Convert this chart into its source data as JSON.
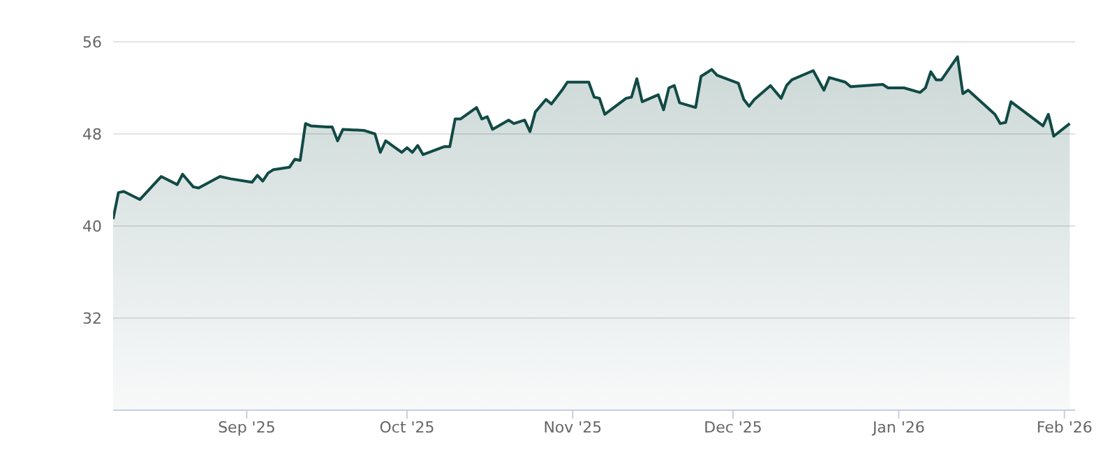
{
  "chart_data": {
    "type": "area",
    "x": [
      "2025-08-07",
      "2025-08-08",
      "2025-08-09",
      "2025-08-12",
      "2025-08-16",
      "2025-08-19",
      "2025-08-20",
      "2025-08-22",
      "2025-08-23",
      "2025-08-27",
      "2025-08-29",
      "2025-09-02",
      "2025-09-03",
      "2025-09-04",
      "2025-09-05",
      "2025-09-06",
      "2025-09-09",
      "2025-09-10",
      "2025-09-11",
      "2025-09-12",
      "2025-09-13",
      "2025-09-16",
      "2025-09-17",
      "2025-09-18",
      "2025-09-19",
      "2025-09-23",
      "2025-09-25",
      "2025-09-26",
      "2025-09-27",
      "2025-09-30",
      "2025-10-01",
      "2025-10-02",
      "2025-10-03",
      "2025-10-04",
      "2025-10-08",
      "2025-10-09",
      "2025-10-10",
      "2025-10-11",
      "2025-10-14",
      "2025-10-15",
      "2025-10-16",
      "2025-10-17",
      "2025-10-20",
      "2025-10-21",
      "2025-10-23",
      "2025-10-24",
      "2025-10-25",
      "2025-10-27",
      "2025-10-28",
      "2025-10-30",
      "2025-10-31",
      "2025-11-04",
      "2025-11-05",
      "2025-11-06",
      "2025-11-07",
      "2025-11-11",
      "2025-11-12",
      "2025-11-13",
      "2025-11-14",
      "2025-11-17",
      "2025-11-18",
      "2025-11-19",
      "2025-11-20",
      "2025-11-21",
      "2025-11-24",
      "2025-11-25",
      "2025-11-27",
      "2025-11-28",
      "2025-12-02",
      "2025-12-03",
      "2025-12-04",
      "2025-12-05",
      "2025-12-08",
      "2025-12-10",
      "2025-12-11",
      "2025-12-12",
      "2025-12-16",
      "2025-12-18",
      "2025-12-19",
      "2025-12-22",
      "2025-12-23",
      "2025-12-29",
      "2025-12-30",
      "2026-01-02",
      "2026-01-05",
      "2026-01-06",
      "2026-01-07",
      "2026-01-08",
      "2026-01-09",
      "2026-01-12",
      "2026-01-13",
      "2026-01-14",
      "2026-01-19",
      "2026-01-20",
      "2026-01-21",
      "2026-01-22",
      "2026-01-28",
      "2026-01-29",
      "2026-01-30",
      "2026-02-02"
    ],
    "series": [
      {
        "color": "#114a45",
        "values": [
          40.6,
          42.9,
          43.0,
          42.3,
          44.3,
          43.6,
          44.5,
          43.4,
          43.3,
          44.3,
          44.1,
          43.8,
          44.4,
          43.9,
          44.6,
          44.9,
          45.1,
          45.8,
          45.7,
          48.9,
          48.7,
          48.6,
          48.6,
          47.4,
          48.4,
          48.3,
          48.0,
          46.4,
          47.4,
          46.4,
          46.8,
          46.4,
          47.0,
          46.2,
          46.9,
          46.9,
          49.3,
          49.3,
          50.3,
          49.3,
          49.5,
          48.4,
          49.2,
          48.9,
          49.2,
          48.2,
          49.9,
          51.0,
          50.6,
          51.8,
          52.5,
          52.5,
          51.2,
          51.1,
          49.7,
          51.1,
          51.2,
          52.8,
          50.8,
          51.4,
          50.1,
          52.0,
          52.2,
          50.7,
          50.3,
          53.0,
          53.6,
          53.1,
          52.4,
          51.0,
          50.4,
          51.0,
          52.2,
          51.1,
          52.2,
          52.7,
          53.5,
          51.8,
          52.9,
          52.5,
          52.1,
          52.3,
          52.0,
          52.0,
          51.6,
          52.0,
          53.4,
          52.7,
          52.7,
          54.7,
          51.5,
          51.8,
          49.7,
          48.9,
          49.0,
          50.8,
          48.7,
          49.7,
          47.8,
          48.9
        ]
      }
    ],
    "xlim": [
      "2025-08-07",
      "2026-02-03"
    ],
    "xticks": [
      {
        "value": "2025-09-01",
        "label": "Sep '25"
      },
      {
        "value": "2025-10-01",
        "label": "Oct '25"
      },
      {
        "value": "2025-11-01",
        "label": "Nov '25"
      },
      {
        "value": "2025-12-01",
        "label": "Dec '25"
      },
      {
        "value": "2026-01-01",
        "label": "Jan '26"
      },
      {
        "value": "2026-02-01",
        "label": "Feb '26"
      }
    ],
    "ylim": [
      24,
      56
    ],
    "yticks": [
      {
        "value": 24,
        "label": null
      },
      32,
      40,
      48,
      56
    ],
    "grid": "y",
    "marker": "none",
    "legend": false
  }
}
